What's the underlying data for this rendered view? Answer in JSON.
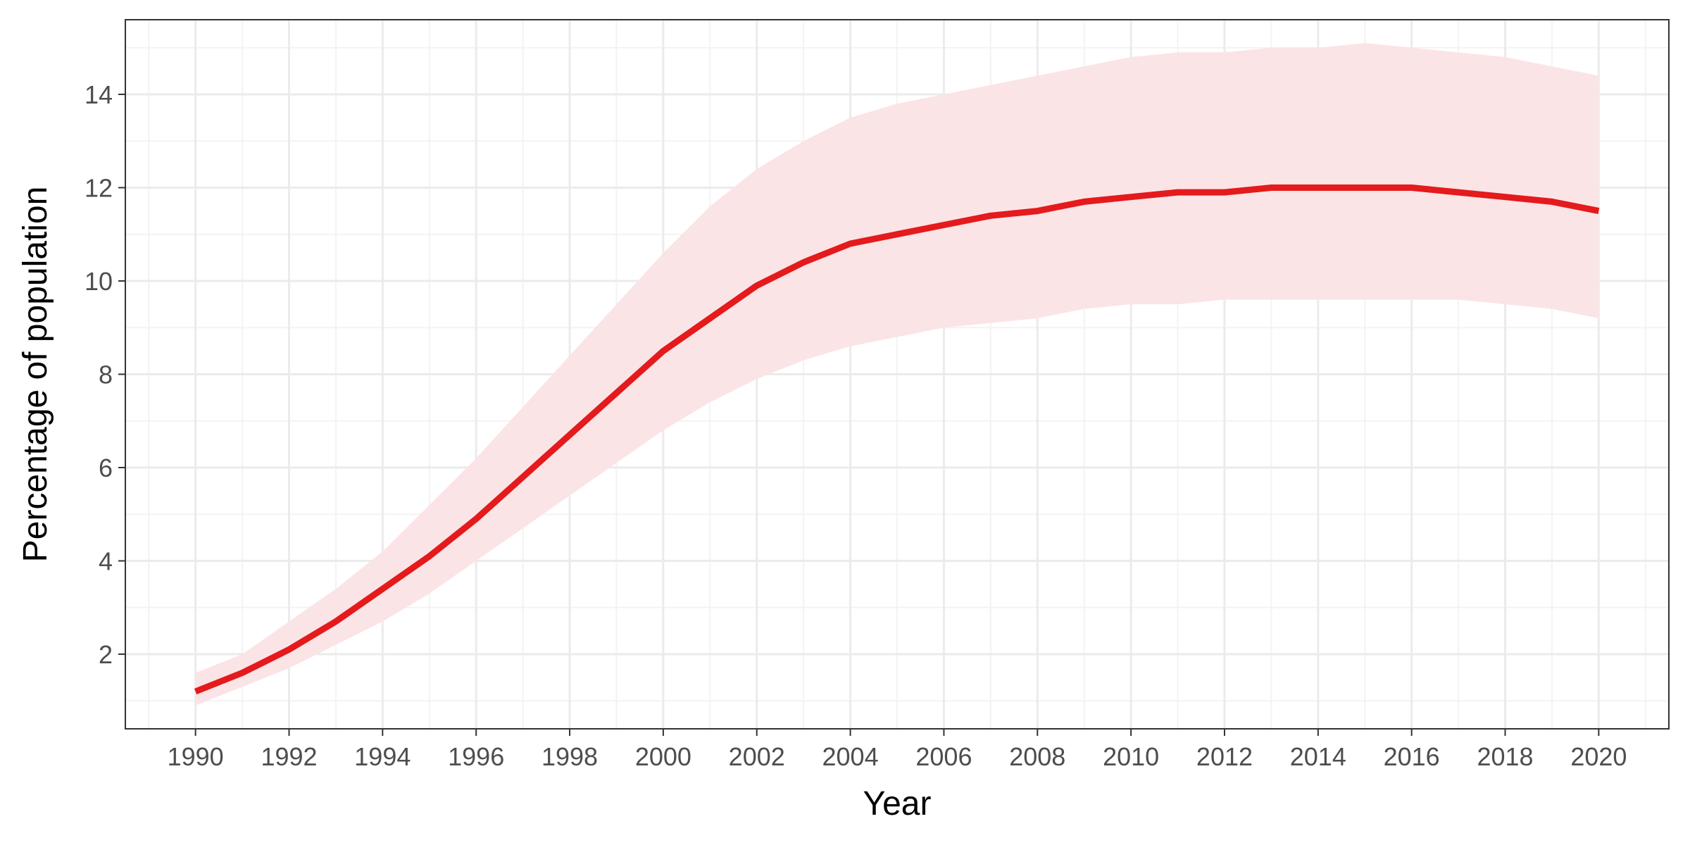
{
  "chart_data": {
    "type": "line",
    "title": "",
    "xlabel": "Year",
    "ylabel": "Percentage of population",
    "xlim": [
      1988.5,
      2021.5
    ],
    "ylim": [
      0.4,
      15.6
    ],
    "x_ticks": [
      1990,
      1992,
      1994,
      1996,
      1998,
      2000,
      2002,
      2004,
      2006,
      2008,
      2010,
      2012,
      2014,
      2016,
      2018,
      2020
    ],
    "y_ticks": [
      2,
      4,
      6,
      8,
      10,
      12,
      14
    ],
    "grid": true,
    "legend": "none",
    "x": [
      1990,
      1991,
      1992,
      1993,
      1994,
      1995,
      1996,
      1997,
      1998,
      1999,
      2000,
      2001,
      2002,
      2003,
      2004,
      2005,
      2006,
      2007,
      2008,
      2009,
      2010,
      2011,
      2012,
      2013,
      2014,
      2015,
      2016,
      2017,
      2018,
      2019,
      2020
    ],
    "series": [
      {
        "values": [
          1.2,
          1.6,
          2.1,
          2.7,
          3.4,
          4.1,
          4.9,
          5.8,
          6.7,
          7.6,
          8.5,
          9.2,
          9.9,
          10.4,
          10.8,
          11.0,
          11.2,
          11.4,
          11.5,
          11.7,
          11.8,
          11.9,
          11.9,
          12.0,
          12.0,
          12.0,
          12.0,
          11.9,
          11.8,
          11.7,
          11.5
        ],
        "lower": [
          0.9,
          1.3,
          1.7,
          2.2,
          2.7,
          3.3,
          4.0,
          4.7,
          5.4,
          6.1,
          6.8,
          7.4,
          7.9,
          8.3,
          8.6,
          8.8,
          9.0,
          9.1,
          9.2,
          9.4,
          9.5,
          9.5,
          9.6,
          9.6,
          9.6,
          9.6,
          9.6,
          9.6,
          9.5,
          9.4,
          9.2
        ],
        "upper": [
          1.6,
          2.0,
          2.7,
          3.4,
          4.2,
          5.2,
          6.2,
          7.3,
          8.4,
          9.5,
          10.6,
          11.6,
          12.4,
          13.0,
          13.5,
          13.8,
          14.0,
          14.2,
          14.4,
          14.6,
          14.8,
          14.9,
          14.9,
          15.0,
          15.0,
          15.1,
          15.0,
          14.9,
          14.8,
          14.6,
          14.4
        ]
      }
    ],
    "colors": {
      "line": "#e41a1c",
      "ribbon": "#fbe4e6",
      "grid_major": "#ebebeb",
      "grid_minor": "#f3f3f3",
      "panel_border": "#333333"
    }
  }
}
